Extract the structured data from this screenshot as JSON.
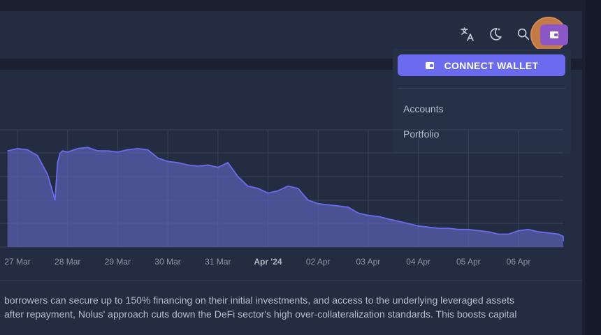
{
  "header": {
    "icons": [
      "translate-icon",
      "moon-icon",
      "search-icon",
      "wallet-icon"
    ]
  },
  "wallet_menu": {
    "connect_label": "CONNECT WALLET",
    "items": [
      "Accounts",
      "Portfolio"
    ]
  },
  "chart_data": {
    "type": "area",
    "x_ticks": [
      "27 Mar",
      "28 Mar",
      "29 Mar",
      "30 Mar",
      "31 Mar",
      "Apr '24",
      "02 Apr",
      "03 Apr",
      "04 Apr",
      "05 Apr",
      "06 Apr"
    ],
    "bold_tick": "Apr '24",
    "grid": true,
    "colors": {
      "line": "#6b6bf0",
      "fill": "#5a5fb0"
    },
    "x": [
      26.8,
      27.0,
      27.2,
      27.4,
      27.6,
      27.75,
      27.8,
      27.85,
      27.9,
      28.0,
      28.2,
      28.4,
      28.6,
      28.8,
      29.0,
      29.2,
      29.4,
      29.6,
      29.8,
      30.0,
      30.2,
      30.4,
      30.6,
      30.8,
      31.0,
      31.2,
      31.4,
      31.6,
      31.8,
      32.0,
      32.2,
      32.4,
      32.6,
      32.8,
      33.0,
      33.2,
      33.4,
      33.6,
      33.8,
      34.0,
      34.2,
      34.4,
      34.6,
      34.8,
      35.0,
      35.2,
      35.4,
      35.6,
      35.8,
      36.0,
      36.2,
      36.4,
      36.6,
      36.8,
      37.0,
      37.2,
      37.4,
      37.6,
      37.8,
      38.0,
      38.2,
      38.4,
      38.6,
      38.8,
      39.0,
      39.2,
      39.4,
      39.6
    ],
    "y": [
      82,
      84,
      83,
      78,
      62,
      40,
      72,
      80,
      82,
      81,
      84,
      85,
      82,
      82,
      81,
      83,
      84,
      83,
      76,
      73,
      72,
      70,
      69,
      70,
      68,
      72,
      60,
      52,
      50,
      46,
      48,
      52,
      50,
      40,
      37,
      36,
      35,
      34,
      29,
      27,
      26,
      24,
      22,
      20,
      18,
      17,
      16,
      16,
      15,
      15,
      14,
      13,
      11,
      11,
      14,
      15,
      13,
      12,
      11,
      9,
      8,
      8,
      9,
      7,
      6,
      5,
      6,
      5
    ],
    "ylim": [
      0,
      100
    ]
  },
  "description": {
    "line1": "borrowers can secure up to 150% financing on their initial investments, and access to the underlying leveraged assets",
    "line2": "after repayment, Nolus' approach cuts down the DeFi sector's high over-collateralization standards. This boosts capital"
  }
}
